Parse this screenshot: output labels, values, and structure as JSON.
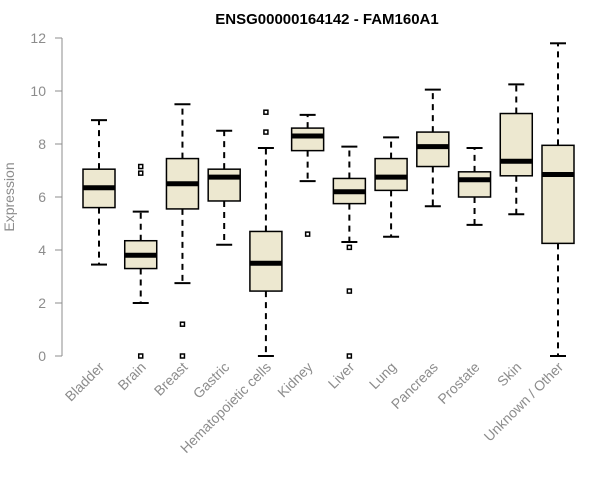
{
  "chart_data": {
    "type": "boxplot",
    "title": "ENSG00000164142 - FAM160A1",
    "xlabel": "",
    "ylabel": "Expression",
    "ylim": [
      0,
      12
    ],
    "yticks": [
      0,
      2,
      4,
      6,
      8,
      10,
      12
    ],
    "grid": false,
    "box_fill": "#ede8d0",
    "median_color": "#000000",
    "categories": [
      "Bladder",
      "Brain",
      "Breast",
      "Gastric",
      "Hematopoietic cells",
      "Kidney",
      "Liver",
      "Lung",
      "Pancreas",
      "Prostate",
      "Skin",
      "Unknown / Other"
    ],
    "boxes": [
      {
        "category": "Bladder",
        "whisker_low": 3.45,
        "q1": 5.6,
        "median": 6.35,
        "q3": 7.05,
        "whisker_high": 8.9,
        "outliers": []
      },
      {
        "category": "Brain",
        "whisker_low": 2.0,
        "q1": 3.3,
        "median": 3.8,
        "q3": 4.35,
        "whisker_high": 5.45,
        "outliers": [
          0.0,
          6.9,
          7.15
        ]
      },
      {
        "category": "Breast",
        "whisker_low": 2.75,
        "q1": 5.55,
        "median": 6.5,
        "q3": 7.45,
        "whisker_high": 9.5,
        "outliers": [
          0.0,
          1.2
        ]
      },
      {
        "category": "Gastric",
        "whisker_low": 4.2,
        "q1": 5.85,
        "median": 6.75,
        "q3": 7.05,
        "whisker_high": 8.5,
        "outliers": []
      },
      {
        "category": "Hematopoietic cells",
        "whisker_low": 0.0,
        "q1": 2.45,
        "median": 3.5,
        "q3": 4.7,
        "whisker_high": 7.85,
        "outliers": [
          8.45,
          9.2
        ]
      },
      {
        "category": "Kidney",
        "whisker_low": 6.6,
        "q1": 7.75,
        "median": 8.3,
        "q3": 8.6,
        "whisker_high": 9.1,
        "outliers": [
          4.6
        ]
      },
      {
        "category": "Liver",
        "whisker_low": 4.3,
        "q1": 5.75,
        "median": 6.2,
        "q3": 6.7,
        "whisker_high": 7.9,
        "outliers": [
          0.0,
          2.45,
          4.1
        ]
      },
      {
        "category": "Lung",
        "whisker_low": 4.5,
        "q1": 6.25,
        "median": 6.75,
        "q3": 7.45,
        "whisker_high": 8.25,
        "outliers": []
      },
      {
        "category": "Pancreas",
        "whisker_low": 5.65,
        "q1": 7.15,
        "median": 7.9,
        "q3": 8.45,
        "whisker_high": 10.05,
        "outliers": []
      },
      {
        "category": "Prostate",
        "whisker_low": 4.95,
        "q1": 6.0,
        "median": 6.65,
        "q3": 6.95,
        "whisker_high": 7.85,
        "outliers": []
      },
      {
        "category": "Skin",
        "whisker_low": 5.35,
        "q1": 6.8,
        "median": 7.35,
        "q3": 9.15,
        "whisker_high": 10.25,
        "outliers": []
      },
      {
        "category": "Unknown / Other",
        "whisker_low": 0.0,
        "q1": 4.25,
        "median": 6.85,
        "q3": 7.95,
        "whisker_high": 11.8,
        "outliers": []
      }
    ]
  }
}
